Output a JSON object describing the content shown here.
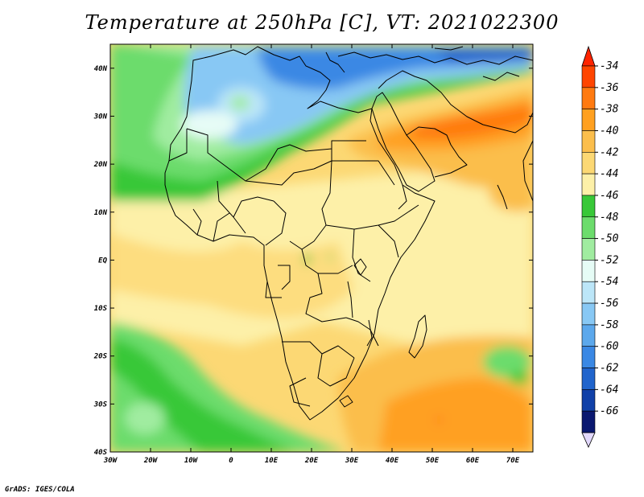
{
  "title": "Temperature at 250hPa [C], VT: 2021022300",
  "credit": "GrADS: IGES/COLA",
  "map": {
    "variable": "Temperature",
    "level": "250hPa",
    "units": "C",
    "valid_time": "2021022300",
    "lon_range": [
      -30,
      75
    ],
    "lat_range": [
      -40,
      45
    ],
    "lat_ticks": [
      "40N",
      "30N",
      "20N",
      "10N",
      "EQ",
      "10S",
      "20S",
      "30S",
      "40S"
    ],
    "lon_ticks": [
      "30W",
      "20W",
      "10W",
      "0",
      "10E",
      "20E",
      "30E",
      "40E",
      "50E",
      "60E",
      "70E"
    ]
  },
  "colorbar": {
    "labels": [
      "-34",
      "-36",
      "-38",
      "-40",
      "-42",
      "-44",
      "-46",
      "-48",
      "-50",
      "-52",
      "-54",
      "-56",
      "-58",
      "-60",
      "-62",
      "-64",
      "-66"
    ],
    "colors": [
      "#ff4500",
      "#ff7a10",
      "#ffa020",
      "#fbbe4c",
      "#fcd874",
      "#fdf0a8",
      "#38c838",
      "#6cdc6c",
      "#a0eca0",
      "#e6fcf6",
      "#bce6f8",
      "#88c8f4",
      "#5ca8ec",
      "#3a88e4",
      "#2064cc",
      "#1040a8",
      "#0a1870"
    ],
    "top_color": "#ff2400",
    "bottom_color": "#e2d8fc"
  }
}
